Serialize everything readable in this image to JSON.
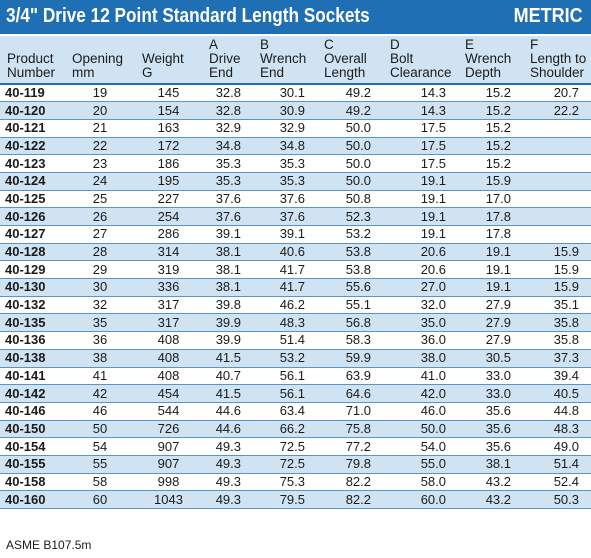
{
  "title": "3/4\" Drive 12 Point Standard Length Sockets",
  "badge": "METRIC",
  "headers": [
    [
      "",
      "Product",
      "Number"
    ],
    [
      "",
      "Opening",
      "mm"
    ],
    [
      "",
      "Weight",
      "G"
    ],
    [
      "A",
      "Drive",
      "End"
    ],
    [
      "B",
      "Wrench",
      "End"
    ],
    [
      "C",
      "Overall",
      "Length"
    ],
    [
      "D",
      "Bolt",
      "Clearance"
    ],
    [
      "E",
      "Wrench",
      "Depth"
    ],
    [
      "F",
      "Length to",
      "Shoulder"
    ]
  ],
  "rows": [
    [
      "40-119",
      "19",
      "145",
      "32.8",
      "30.1",
      "49.2",
      "14.3",
      "15.2",
      "20.7"
    ],
    [
      "40-120",
      "20",
      "154",
      "32.8",
      "30.9",
      "49.2",
      "14.3",
      "15.2",
      "22.2"
    ],
    [
      "40-121",
      "21",
      "163",
      "32.9",
      "32.9",
      "50.0",
      "17.5",
      "15.2",
      ""
    ],
    [
      "40-122",
      "22",
      "172",
      "34.8",
      "34.8",
      "50.0",
      "17.5",
      "15.2",
      ""
    ],
    [
      "40-123",
      "23",
      "186",
      "35.3",
      "35.3",
      "50.0",
      "17.5",
      "15.2",
      ""
    ],
    [
      "40-124",
      "24",
      "195",
      "35.3",
      "35.3",
      "50.0",
      "19.1",
      "15.9",
      ""
    ],
    [
      "40-125",
      "25",
      "227",
      "37.6",
      "37.6",
      "50.8",
      "19.1",
      "17.0",
      ""
    ],
    [
      "40-126",
      "26",
      "254",
      "37.6",
      "37.6",
      "52.3",
      "19.1",
      "17.8",
      ""
    ],
    [
      "40-127",
      "27",
      "286",
      "39.1",
      "39.1",
      "53.2",
      "19.1",
      "17.8",
      ""
    ],
    [
      "40-128",
      "28",
      "314",
      "38.1",
      "40.6",
      "53.8",
      "20.6",
      "19.1",
      "15.9"
    ],
    [
      "40-129",
      "29",
      "319",
      "38.1",
      "41.7",
      "53.8",
      "20.6",
      "19.1",
      "15.9"
    ],
    [
      "40-130",
      "30",
      "336",
      "38.1",
      "41.7",
      "55.6",
      "27.0",
      "19.1",
      "15.9"
    ],
    [
      "40-132",
      "32",
      "317",
      "39.8",
      "46.2",
      "55.1",
      "32.0",
      "27.9",
      "35.1"
    ],
    [
      "40-135",
      "35",
      "317",
      "39.9",
      "48.3",
      "56.8",
      "35.0",
      "27.9",
      "35.8"
    ],
    [
      "40-136",
      "36",
      "408",
      "39.9",
      "51.4",
      "58.3",
      "36.0",
      "27.9",
      "35.8"
    ],
    [
      "40-138",
      "38",
      "408",
      "41.5",
      "53.2",
      "59.9",
      "38.0",
      "30.5",
      "37.3"
    ],
    [
      "40-141",
      "41",
      "408",
      "40.7",
      "56.1",
      "63.9",
      "41.0",
      "33.0",
      "39.4"
    ],
    [
      "40-142",
      "42",
      "454",
      "41.5",
      "56.1",
      "64.6",
      "42.0",
      "33.0",
      "40.5"
    ],
    [
      "40-146",
      "46",
      "544",
      "44.6",
      "63.4",
      "71.0",
      "46.0",
      "35.6",
      "44.8"
    ],
    [
      "40-150",
      "50",
      "726",
      "44.6",
      "66.2",
      "75.8",
      "50.0",
      "35.6",
      "48.3"
    ],
    [
      "40-154",
      "54",
      "907",
      "49.3",
      "72.5",
      "77.2",
      "54.0",
      "35.6",
      "49.0"
    ],
    [
      "40-155",
      "55",
      "907",
      "49.3",
      "72.5",
      "79.8",
      "55.0",
      "38.1",
      "51.4"
    ],
    [
      "40-158",
      "58",
      "998",
      "49.3",
      "75.3",
      "82.2",
      "58.0",
      "43.2",
      "52.4"
    ],
    [
      "40-160",
      "60",
      "1043",
      "49.3",
      "79.5",
      "82.2",
      "60.0",
      "43.2",
      "50.3"
    ]
  ],
  "footer": "ASME B107.5m",
  "colors": {
    "header_bar": "#1e6fb3",
    "stripe": "#cfe3f3",
    "rule": "#5a95c6"
  }
}
